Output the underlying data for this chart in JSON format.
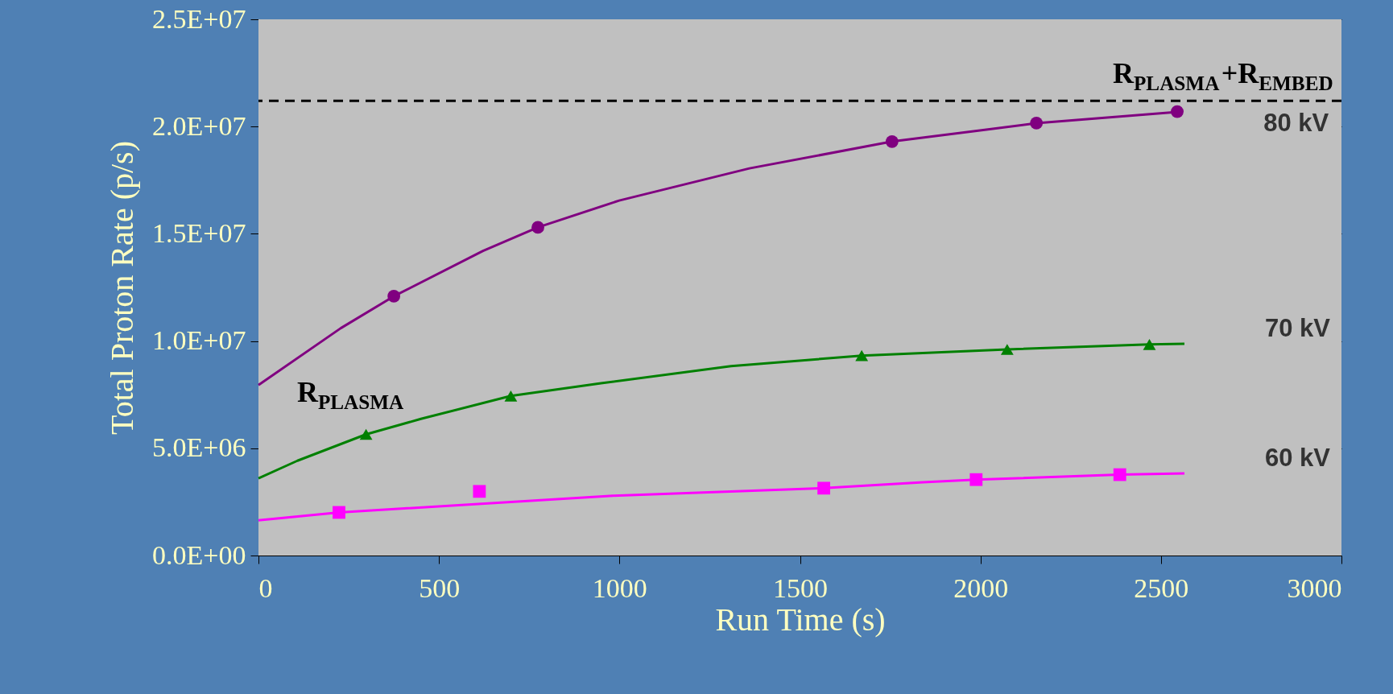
{
  "chart_data": {
    "type": "line",
    "xlabel": "Run Time (s)",
    "ylabel": "Total Proton Rate (p/s)",
    "xlim": [
      0,
      3000
    ],
    "xticks": [
      0,
      500,
      1000,
      1500,
      2000,
      2500,
      3000
    ],
    "ylim": [
      0,
      25000000
    ],
    "yticks": [
      {
        "value": 0,
        "label": "0.0E+00"
      },
      {
        "value": 5000000,
        "label": "5.0E+06"
      },
      {
        "value": 10000000,
        "label": "1.0E+07"
      },
      {
        "value": 15000000,
        "label": "1.5E+07"
      },
      {
        "value": 20000000,
        "label": "2.0E+07"
      },
      {
        "value": 25000000,
        "label": "2.5E+07"
      }
    ],
    "grid": "y",
    "legend": false,
    "series": [
      {
        "name": "80 kV",
        "marker": "none",
        "color": "#800080",
        "x": [
          0,
          228,
          375,
          622,
          774,
          999,
          1360,
          1755,
          2012,
          2155,
          2561
        ],
        "values": [
          7950000,
          10600000,
          12090000,
          14200000,
          15300000,
          16550000,
          18050000,
          19300000,
          19850000,
          20160000,
          20700000
        ]
      },
      {
        "type": "scatter",
        "marker": "circle",
        "color": "#800080",
        "x": [
          375,
          774,
          1755,
          2155,
          2545
        ],
        "values": [
          12090000,
          15300000,
          19300000,
          20160000,
          20700000
        ]
      },
      {
        "name": "70 kV",
        "marker": "none",
        "color": "#008000",
        "x": [
          0,
          108,
          298,
          450,
          699,
          949,
          1309,
          1671,
          2074,
          2468,
          2565
        ],
        "values": [
          3600000,
          4420000,
          5650000,
          6370000,
          7440000,
          8030000,
          8830000,
          9320000,
          9610000,
          9840000,
          9870000
        ]
      },
      {
        "type": "scatter",
        "marker": "triangle",
        "color": "#008000",
        "x": [
          298,
          699,
          1671,
          2074,
          2468
        ],
        "values": [
          5650000,
          7440000,
          9320000,
          9610000,
          9840000
        ]
      },
      {
        "name": "60 kV",
        "marker": "none",
        "color": "#ff00ff",
        "x": [
          0,
          223,
          982,
          1566,
          1841,
          1988,
          2386,
          2565
        ],
        "values": [
          1640000,
          2010000,
          2790000,
          3140000,
          3420000,
          3540000,
          3770000,
          3830000
        ]
      },
      {
        "type": "scatter",
        "marker": "square",
        "color": "#ff00ff",
        "x": [
          223,
          612,
          1566,
          1988,
          2386
        ],
        "values": [
          2010000,
          2990000,
          3140000,
          3540000,
          3770000
        ]
      }
    ],
    "ref_lines": [
      {
        "axis": "y",
        "value": 21200000,
        "label": "R$_{PLASMA}$+R$_{EMBED}$",
        "color": "#000000",
        "line_style": "dashed"
      }
    ],
    "annotations": [
      {
        "text": "R$_{PLASMA}$",
        "x": 0,
        "y": 8000000
      }
    ]
  }
}
